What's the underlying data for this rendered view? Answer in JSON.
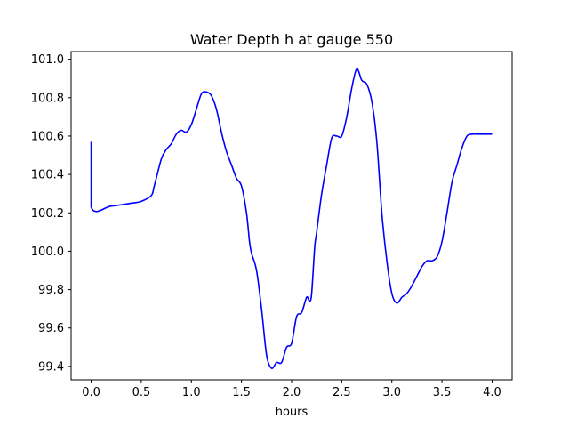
{
  "chart_data": {
    "type": "line",
    "title": "Water Depth h at gauge 550",
    "xlabel": "hours",
    "ylabel": "",
    "xlim": [
      -0.2,
      4.2
    ],
    "ylim": [
      99.33,
      101.04
    ],
    "grid": false,
    "x_ticks": [
      0.0,
      0.5,
      1.0,
      1.5,
      2.0,
      2.5,
      3.0,
      3.5,
      4.0
    ],
    "x_tick_labels": [
      "0.0",
      "0.5",
      "1.0",
      "1.5",
      "2.0",
      "2.5",
      "3.0",
      "3.5",
      "4.0"
    ],
    "y_ticks": [
      99.4,
      99.6,
      99.8,
      100.0,
      100.2,
      100.4,
      100.6,
      100.8,
      101.0
    ],
    "y_tick_labels": [
      "99.4",
      "99.6",
      "99.8",
      "100.0",
      "100.2",
      "100.4",
      "100.6",
      "100.8",
      "101.0"
    ],
    "series": [
      {
        "color": "#0000ff",
        "x": [
          0.0,
          0.0,
          0.2,
          0.4,
          0.5,
          0.6,
          0.63,
          0.7,
          0.75,
          0.8,
          0.85,
          0.9,
          0.95,
          1.0,
          1.05,
          1.1,
          1.15,
          1.2,
          1.25,
          1.3,
          1.35,
          1.4,
          1.45,
          1.5,
          1.55,
          1.58,
          1.6,
          1.65,
          1.7,
          1.75,
          1.8,
          1.85,
          1.9,
          1.95,
          2.0,
          2.05,
          2.1,
          2.15,
          2.18,
          2.2,
          2.23,
          2.25,
          2.3,
          2.35,
          2.4,
          2.45,
          2.5,
          2.55,
          2.6,
          2.65,
          2.7,
          2.75,
          2.8,
          2.85,
          2.9,
          2.95,
          3.0,
          3.05,
          3.1,
          3.15,
          3.2,
          3.25,
          3.3,
          3.35,
          3.4,
          3.45,
          3.5,
          3.55,
          3.6,
          3.65,
          3.7,
          3.75,
          3.8,
          3.85,
          3.9,
          3.95,
          4.0
        ],
        "y": [
          100.57,
          100.23,
          100.235,
          100.25,
          100.26,
          100.29,
          100.34,
          100.48,
          100.53,
          100.56,
          100.61,
          100.63,
          100.62,
          100.66,
          100.74,
          100.82,
          100.83,
          100.81,
          100.74,
          100.62,
          100.52,
          100.45,
          100.38,
          100.34,
          100.2,
          100.05,
          99.99,
          99.9,
          99.7,
          99.46,
          99.39,
          99.42,
          99.42,
          99.5,
          99.52,
          99.66,
          99.68,
          99.76,
          99.74,
          99.78,
          100.02,
          100.1,
          100.3,
          100.45,
          100.59,
          100.6,
          100.6,
          100.7,
          100.85,
          100.95,
          100.89,
          100.87,
          100.78,
          100.57,
          100.2,
          99.95,
          99.78,
          99.73,
          99.76,
          99.78,
          99.82,
          99.87,
          99.92,
          99.95,
          99.95,
          99.97,
          100.05,
          100.2,
          100.36,
          100.45,
          100.54,
          100.6,
          100.61,
          100.61,
          100.61,
          100.61,
          100.61
        ]
      }
    ]
  }
}
